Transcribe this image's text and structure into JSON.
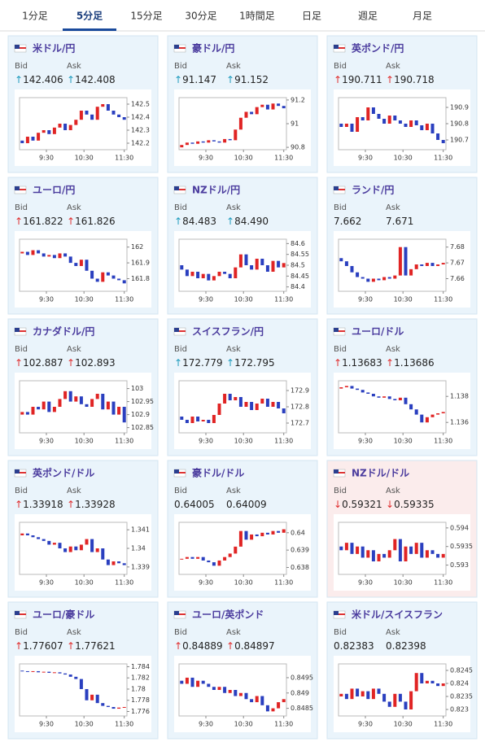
{
  "tabs": [
    "1分足",
    "5分足",
    "15分足",
    "30分足",
    "1時間足",
    "日足",
    "週足",
    "月足"
  ],
  "active_tab": 1,
  "bid_label": "Bid",
  "ask_label": "Ask",
  "up_color": "#e02424",
  "down_color": "#2a3fbf",
  "time_axis": {
    "xlim": [
      0,
      20
    ],
    "xticks": [
      {
        "value": 5,
        "label": "9:30"
      },
      {
        "value": 12,
        "label": "10:30"
      },
      {
        "value": 19.5,
        "label": "11:30"
      }
    ]
  },
  "pairs": [
    {
      "name": "米ドル/円",
      "arrow": "↑",
      "bid": "142.406",
      "ask": "142.408",
      "ylim": [
        142.15,
        142.55
      ],
      "yticks": [
        142.2,
        142.3,
        142.4,
        142.5
      ],
      "open": 142.22,
      "closes": [
        142.2,
        142.25,
        142.22,
        142.28,
        142.3,
        142.27,
        142.32,
        142.35,
        142.3,
        142.34,
        142.38,
        142.45,
        142.42,
        142.38,
        142.48,
        142.5,
        142.45,
        142.42,
        142.4,
        142.38
      ]
    },
    {
      "name": "豪ドル/円",
      "arrow": "↑",
      "bid": "91.147",
      "ask": "91.152",
      "ylim": [
        90.78,
        91.22
      ],
      "yticks": [
        90.8,
        91,
        91.2
      ],
      "open": 90.8,
      "closes": [
        90.82,
        90.84,
        90.83,
        90.85,
        90.84,
        90.86,
        90.85,
        90.84,
        90.87,
        90.86,
        90.95,
        91.05,
        91.1,
        91.08,
        91.14,
        91.16,
        91.12,
        91.17,
        91.15,
        91.13
      ]
    },
    {
      "name": "英ポンド/円",
      "arrow": "↑",
      "bid": "190.711",
      "ask": "190.718",
      "ylim": [
        190.64,
        190.96
      ],
      "yticks": [
        190.7,
        190.8,
        190.9
      ],
      "open": 190.8,
      "closes": [
        190.78,
        190.8,
        190.75,
        190.84,
        190.82,
        190.9,
        190.86,
        190.83,
        190.8,
        190.85,
        190.82,
        190.8,
        190.78,
        190.82,
        190.79,
        190.76,
        190.8,
        190.74,
        190.7,
        190.68
      ]
    },
    {
      "name": "ユーロ/円",
      "arrow": "↑",
      "bid": "161.822",
      "ask": "161.826",
      "ylim": [
        161.72,
        162.05
      ],
      "yticks": [
        161.8,
        161.9,
        162
      ],
      "open": 161.96,
      "closes": [
        161.97,
        161.95,
        161.98,
        161.96,
        161.94,
        161.95,
        161.93,
        161.96,
        161.94,
        161.9,
        161.88,
        161.92,
        161.85,
        161.8,
        161.78,
        161.84,
        161.82,
        161.8,
        161.79,
        161.77
      ]
    },
    {
      "name": "NZドル/円",
      "arrow": "↑",
      "bid": "84.483",
      "ask": "84.490",
      "ylim": [
        84.38,
        84.62
      ],
      "yticks": [
        84.4,
        84.45,
        84.5,
        84.55,
        84.6
      ],
      "open": 84.5,
      "closes": [
        84.48,
        84.45,
        84.47,
        84.44,
        84.46,
        84.43,
        84.45,
        84.47,
        84.46,
        84.44,
        84.49,
        84.55,
        84.5,
        84.48,
        84.53,
        84.5,
        84.47,
        84.52,
        84.49,
        84.51
      ]
    },
    {
      "name": "ランド/円",
      "bid": "7.662",
      "ask": "7.671",
      "ylim": [
        7.652,
        7.685
      ],
      "yticks": [
        7.66,
        7.67,
        7.68
      ],
      "open": 7.673,
      "closes": [
        7.671,
        7.668,
        7.664,
        7.661,
        7.66,
        7.658,
        7.66,
        7.659,
        7.661,
        7.66,
        7.662,
        7.68,
        7.662,
        7.666,
        7.669,
        7.668,
        7.67,
        7.668,
        7.669,
        7.67
      ]
    },
    {
      "name": "カナダドル/円",
      "arrow": "↑",
      "bid": "102.887",
      "ask": "102.893",
      "ylim": [
        102.83,
        103.03
      ],
      "yticks": [
        102.85,
        102.9,
        102.95,
        103
      ],
      "open": 102.9,
      "closes": [
        102.91,
        102.9,
        102.93,
        102.92,
        102.95,
        102.91,
        102.93,
        102.96,
        102.99,
        102.95,
        102.97,
        102.94,
        102.93,
        102.96,
        102.98,
        102.92,
        102.95,
        102.9,
        102.93,
        102.87
      ]
    },
    {
      "name": "スイスフラン/円",
      "arrow": "↑",
      "bid": "172.779",
      "ask": "172.795",
      "ylim": [
        172.64,
        172.96
      ],
      "yticks": [
        172.7,
        172.8,
        172.9
      ],
      "open": 172.74,
      "closes": [
        172.72,
        172.7,
        172.74,
        172.71,
        172.72,
        172.7,
        172.75,
        172.82,
        172.88,
        172.84,
        172.86,
        172.8,
        172.83,
        172.78,
        172.82,
        172.85,
        172.8,
        172.83,
        172.79,
        172.76
      ]
    },
    {
      "name": "ユーロ/ドル",
      "arrow": "↑",
      "bid": "1.13683",
      "ask": "1.13686",
      "ylim": [
        1.1352,
        1.1392
      ],
      "yticks": [
        1.136,
        1.138
      ],
      "open": 1.1386,
      "closes": [
        1.1387,
        1.1388,
        1.1386,
        1.1385,
        1.1383,
        1.1382,
        1.138,
        1.1379,
        1.138,
        1.1378,
        1.1377,
        1.1379,
        1.1374,
        1.137,
        1.1366,
        1.136,
        1.1364,
        1.1366,
        1.1367,
        1.1368
      ]
    },
    {
      "name": "英ポンド/ドル",
      "arrow": "↑",
      "bid": "1.33918",
      "ask": "1.33928",
      "ylim": [
        1.3386,
        1.3414
      ],
      "yticks": [
        1.339,
        1.34,
        1.341
      ],
      "open": 1.3407,
      "closes": [
        1.3408,
        1.3407,
        1.3406,
        1.3405,
        1.3404,
        1.3402,
        1.3403,
        1.34,
        1.3398,
        1.3401,
        1.3399,
        1.3402,
        1.3405,
        1.3398,
        1.34,
        1.3394,
        1.3391,
        1.3393,
        1.3392,
        1.3391
      ]
    },
    {
      "name": "豪ドル/ドル",
      "bid": "0.64005",
      "ask": "0.64009",
      "ylim": [
        0.6376,
        0.6406
      ],
      "yticks": [
        0.638,
        0.639,
        0.64
      ],
      "open": 0.6385,
      "closes": [
        0.6385,
        0.6386,
        0.6385,
        0.6386,
        0.6384,
        0.6383,
        0.6381,
        0.6384,
        0.6386,
        0.6388,
        0.6392,
        0.6401,
        0.6396,
        0.6399,
        0.6398,
        0.64,
        0.6399,
        0.6401,
        0.64,
        0.6402
      ]
    },
    {
      "name": "NZドル/ドル",
      "arrow": "↓",
      "bid": "0.59321",
      "ask": "0.59335",
      "card_color": "#fbecec",
      "ylim": [
        0.59275,
        0.59415
      ],
      "yticks": [
        0.593,
        0.5935,
        0.594
      ],
      "open": 0.5935,
      "closes": [
        0.5934,
        0.5936,
        0.5933,
        0.5935,
        0.5932,
        0.5934,
        0.5931,
        0.5933,
        0.5932,
        0.5934,
        0.5937,
        0.5931,
        0.5935,
        0.5933,
        0.5936,
        0.5932,
        0.5934,
        0.5933,
        0.5932,
        0.5933
      ]
    },
    {
      "name": "ユーロ/豪ドル",
      "arrow": "↑",
      "bid": "1.77607",
      "ask": "1.77621",
      "ylim": [
        1.7752,
        1.7845
      ],
      "yticks": [
        1.776,
        1.778,
        1.78,
        1.782,
        1.784
      ],
      "open": 1.7833,
      "closes": [
        1.7832,
        1.7831,
        1.7832,
        1.783,
        1.7831,
        1.7829,
        1.783,
        1.7828,
        1.7826,
        1.7822,
        1.7818,
        1.78,
        1.778,
        1.779,
        1.7775,
        1.777,
        1.7768,
        1.7765,
        1.7767,
        1.7768
      ]
    },
    {
      "name": "ユーロ/英ポンド",
      "arrow": "↑",
      "bid": "0.84889",
      "ask": "0.84897",
      "ylim": [
        0.84825,
        0.84995
      ],
      "yticks": [
        0.8485,
        0.849,
        0.8495
      ],
      "open": 0.8494,
      "closes": [
        0.8493,
        0.8495,
        0.8492,
        0.8494,
        0.8493,
        0.8492,
        0.8491,
        0.8492,
        0.849,
        0.8491,
        0.8489,
        0.849,
        0.8488,
        0.8487,
        0.8489,
        0.8486,
        0.8484,
        0.8485,
        0.8487,
        0.8488
      ]
    },
    {
      "name": "米ドル/スイスフラン",
      "bid": "0.82383",
      "ask": "0.82398",
      "ylim": [
        0.82275,
        0.82475
      ],
      "yticks": [
        0.823,
        0.8235,
        0.824,
        0.8245
      ],
      "open": 0.8235,
      "closes": [
        0.8236,
        0.8234,
        0.8238,
        0.8235,
        0.8237,
        0.8234,
        0.8238,
        0.8236,
        0.8233,
        0.8231,
        0.8236,
        0.8233,
        0.823,
        0.8237,
        0.8244,
        0.824,
        0.8241,
        0.824,
        0.8239,
        0.824
      ]
    }
  ]
}
